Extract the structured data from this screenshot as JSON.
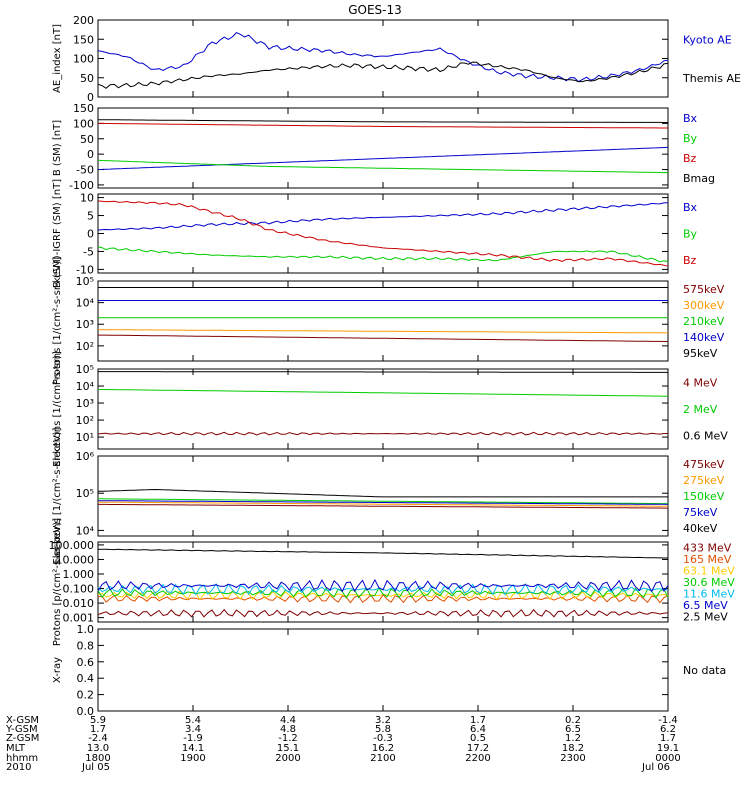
{
  "title": "GOES-13",
  "chart_data": [
    {
      "type": "line",
      "ylabel": "AE_index [nT]",
      "ylim": [
        0,
        200
      ],
      "yticks": [
        "0",
        "50",
        "100",
        "150",
        "200"
      ],
      "series": [
        {
          "name": "Kyoto AE",
          "color": "#0000cc",
          "x": [
            0,
            0.05,
            0.1,
            0.15,
            0.2,
            0.25,
            0.3,
            0.35,
            0.4,
            0.45,
            0.5,
            0.55,
            0.6,
            0.65,
            0.7,
            0.75,
            0.8,
            0.85,
            0.9,
            0.95,
            1.0
          ],
          "values": [
            120,
            105,
            70,
            80,
            140,
            165,
            130,
            125,
            120,
            110,
            105,
            115,
            125,
            90,
            65,
            55,
            50,
            45,
            55,
            70,
            95
          ]
        },
        {
          "name": "Themis AE",
          "color": "#000000",
          "x": [
            0,
            0.05,
            0.1,
            0.15,
            0.2,
            0.25,
            0.3,
            0.35,
            0.4,
            0.45,
            0.5,
            0.55,
            0.6,
            0.65,
            0.7,
            0.75,
            0.8,
            0.85,
            0.9,
            0.95,
            1.0
          ],
          "values": [
            28,
            30,
            35,
            45,
            55,
            60,
            70,
            75,
            80,
            82,
            78,
            75,
            70,
            90,
            80,
            70,
            50,
            40,
            50,
            65,
            85
          ]
        }
      ]
    },
    {
      "type": "line",
      "ylabel": "B (SM) [nT]",
      "ylim": [
        -110,
        150
      ],
      "yticks": [
        "-100",
        "-50",
        "0",
        "50",
        "100",
        "150"
      ],
      "series": [
        {
          "name": "Bx",
          "color": "#0000cc",
          "x": [
            0,
            1
          ],
          "values": [
            -50,
            22
          ]
        },
        {
          "name": "By",
          "color": "#00cc00",
          "x": [
            0,
            0.3,
            1
          ],
          "values": [
            -20,
            -40,
            -60
          ]
        },
        {
          "name": "Bz",
          "color": "#cc0000",
          "x": [
            0,
            0.5,
            1
          ],
          "values": [
            100,
            90,
            85
          ]
        },
        {
          "name": "Bmag",
          "color": "#000000",
          "x": [
            0,
            0.5,
            1
          ],
          "values": [
            112,
            105,
            103
          ]
        }
      ]
    },
    {
      "type": "line",
      "ylabel": "B (SM)-IGRF (SM) [nT]",
      "ylim": [
        -11,
        11
      ],
      "yticks": [
        "-10",
        "-5",
        "0",
        "5",
        "10"
      ],
      "series": [
        {
          "name": "Bx",
          "color": "#0000cc",
          "x": [
            0,
            0.1,
            0.2,
            0.3,
            0.4,
            0.5,
            0.6,
            0.7,
            0.8,
            0.9,
            1.0
          ],
          "values": [
            1,
            1.5,
            2.5,
            3,
            4,
            4.5,
            5,
            5.5,
            6.5,
            7.5,
            8.5
          ]
        },
        {
          "name": "By",
          "color": "#00cc00",
          "x": [
            0,
            0.1,
            0.2,
            0.3,
            0.4,
            0.5,
            0.6,
            0.7,
            0.8,
            0.9,
            1.0
          ],
          "values": [
            -4,
            -5,
            -6,
            -6.5,
            -6.5,
            -7,
            -7,
            -7.5,
            -5,
            -5,
            -8
          ]
        },
        {
          "name": "Bz",
          "color": "#cc0000",
          "x": [
            0,
            0.1,
            0.15,
            0.25,
            0.3,
            0.4,
            0.5,
            0.6,
            0.7,
            0.8,
            0.9,
            1.0
          ],
          "values": [
            9,
            8.5,
            8,
            4,
            1,
            -2,
            -4,
            -5,
            -6,
            -7.5,
            -7,
            -9
          ]
        }
      ]
    },
    {
      "type": "line",
      "ylabel": "Protons [1/(cm²-s-sr-keV)]",
      "yscale": "log",
      "ylim": [
        1.3,
        5
      ],
      "yticks": [
        "10²",
        "10³",
        "10⁴",
        "10⁵"
      ],
      "series": [
        {
          "name": "575keV",
          "color": "#800000",
          "x": [
            0,
            1
          ],
          "values": [
            2.5,
            2.2
          ]
        },
        {
          "name": "300keV",
          "color": "#ff9900",
          "x": [
            0,
            1
          ],
          "values": [
            2.75,
            2.6
          ]
        },
        {
          "name": "210keV",
          "color": "#00cc00",
          "x": [
            0,
            1
          ],
          "values": [
            3.3,
            3.3
          ]
        },
        {
          "name": "140keV",
          "color": "#0000cc",
          "x": [
            0,
            1
          ],
          "values": [
            4.1,
            4.1
          ]
        },
        {
          "name": "95keV",
          "color": "#000000",
          "x": [
            0,
            1
          ],
          "values": [
            4.7,
            4.7
          ]
        }
      ]
    },
    {
      "type": "line",
      "ylabel": "Electrons [1/(cm²-s-sr)]",
      "yscale": "log",
      "ylim": [
        0.3,
        5
      ],
      "yticks": [
        "10¹",
        "10²",
        "10³",
        "10⁴",
        "10⁵"
      ],
      "series": [
        {
          "name": "4 MeV",
          "color": "#800000",
          "x": [
            0,
            1
          ],
          "values": [
            1.2,
            1.2
          ]
        },
        {
          "name": "2 MeV",
          "color": "#00cc00",
          "x": [
            0,
            1
          ],
          "values": [
            3.8,
            3.4
          ]
        },
        {
          "name": "0.6 MeV",
          "color": "#000000",
          "x": [
            0,
            1
          ],
          "values": [
            4.85,
            4.8
          ]
        }
      ]
    },
    {
      "type": "line",
      "ylabel": "Electrons [1/(cm²-s-sr-keV)]",
      "yscale": "log",
      "ylim": [
        3.85,
        6
      ],
      "yticks": [
        "10⁴",
        "10⁵",
        "10⁶"
      ],
      "series": [
        {
          "name": "475keV",
          "color": "#800000",
          "x": [
            0,
            1
          ],
          "values": [
            4.7,
            4.6
          ]
        },
        {
          "name": "275keV",
          "color": "#ff9900",
          "x": [
            0,
            1
          ],
          "values": [
            4.76,
            4.65
          ]
        },
        {
          "name": "150keV",
          "color": "#00cc00",
          "x": [
            0,
            1
          ],
          "values": [
            4.85,
            4.72
          ]
        },
        {
          "name": "75keV",
          "color": "#0000cc",
          "x": [
            0,
            1
          ],
          "values": [
            4.8,
            4.7
          ]
        },
        {
          "name": "40keV",
          "color": "#000000",
          "x": [
            0,
            0.1,
            0.5,
            1
          ],
          "values": [
            5.05,
            5.1,
            4.9,
            4.9
          ]
        }
      ]
    },
    {
      "type": "line",
      "ylabel": "Protons [p/(cm²-s-sr-keV)]",
      "yscale": "log",
      "ylim": [
        -3.3,
        2.2
      ],
      "yticks": [
        "0.001",
        "0.010",
        "0.100",
        "1.000",
        "10.000",
        "100.000"
      ],
      "series": [
        {
          "name": "433 MeV",
          "color": "#800000",
          "x": [
            0,
            1
          ],
          "values": [
            -2.7,
            -2.7
          ]
        },
        {
          "name": "165 MeV",
          "color": "#e05000",
          "x": [
            0,
            1
          ],
          "values": [
            -1.7,
            -1.7
          ]
        },
        {
          "name": "63.1 MeV",
          "color": "#ffcc00",
          "x": [
            0,
            1
          ],
          "values": [
            -1.45,
            -1.45
          ]
        },
        {
          "name": "30.6 MeV",
          "color": "#00cc00",
          "x": [
            0,
            1
          ],
          "values": [
            -1.3,
            -1.3
          ]
        },
        {
          "name": "11.6 MeV",
          "color": "#00bbee",
          "x": [
            0,
            1
          ],
          "values": [
            -1.05,
            -1.05
          ]
        },
        {
          "name": "6.5 MeV",
          "color": "#0000cc",
          "x": [
            0,
            1
          ],
          "values": [
            -0.8,
            -0.8
          ]
        },
        {
          "name": "2.5 MeV",
          "color": "#000000",
          "x": [
            0,
            0.5,
            1
          ],
          "values": [
            1.7,
            1.45,
            1.1
          ]
        }
      ]
    },
    {
      "type": "line",
      "ylabel": "X-ray",
      "ylim": [
        0,
        1
      ],
      "yticks": [
        "0.0",
        "0.2",
        "0.4",
        "0.6",
        "0.8",
        "1.0"
      ],
      "series": [],
      "note": "No data"
    }
  ],
  "xaxis": {
    "row_labels": [
      "X-GSM",
      "Y-GSM",
      "Z-GSM",
      "MLT",
      "hhmm",
      "2010"
    ],
    "columns": [
      [
        "5.9",
        "1.7",
        "-2.4",
        "13.0",
        "1800",
        "Jul 05"
      ],
      [
        "5.4",
        "3.4",
        "-1.9",
        "14.1",
        "1900",
        ""
      ],
      [
        "4.4",
        "4.8",
        "-1.2",
        "15.1",
        "2000",
        ""
      ],
      [
        "3.2",
        "5.8",
        "-0.3",
        "16.2",
        "2100",
        ""
      ],
      [
        "1.7",
        "6.4",
        "0.5",
        "17.2",
        "2200",
        ""
      ],
      [
        "0.2",
        "6.5",
        "1.2",
        "18.2",
        "2300",
        ""
      ],
      [
        "-1.4",
        "6.2",
        "1.7",
        "19.1",
        "0000",
        "Jul 06"
      ]
    ]
  }
}
